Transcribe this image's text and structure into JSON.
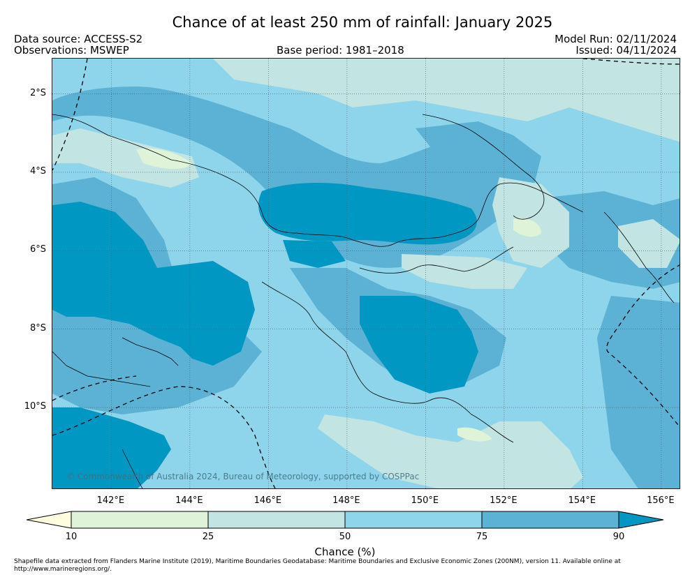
{
  "title": "Chance of at least 250 mm of rainfall: January 2025",
  "header": {
    "data_source": "Data source: ACCESS-S2",
    "observations": "Observations: MSWEP",
    "base_period": "Base period: 1981–2018",
    "model_run": "Model Run: 02/11/2024",
    "issued": "Issued: 04/11/2024"
  },
  "axes": {
    "lon_range": [
      140.5,
      156.5
    ],
    "lat_range": [
      -12.1,
      -1.1
    ],
    "x_ticks": [
      "142°E",
      "144°E",
      "146°E",
      "148°E",
      "150°E",
      "152°E",
      "154°E",
      "156°E"
    ],
    "y_ticks": [
      "2°S",
      "4°S",
      "6°S",
      "8°S",
      "10°S"
    ],
    "x_tick_values": [
      142,
      144,
      146,
      148,
      150,
      152,
      154,
      156
    ],
    "y_tick_values": [
      -2,
      -4,
      -6,
      -8,
      -10
    ],
    "grid": true
  },
  "colors": {
    "c10_25": "#dff3d8",
    "c25_50": "#c2e4e3",
    "c50_75": "#8ed4ea",
    "c75_90": "#5bb2d5",
    "c90_plus": "#0098c2",
    "c_under10": "#fefde0"
  },
  "colorbar": {
    "label": "Chance (%)",
    "ticks": [
      "10",
      "25",
      "50",
      "75",
      "90"
    ]
  },
  "copyright": "© Commonwealth of Australia 2024, Bureau of Meteorology, supported by COSPPac",
  "footnote": "Shapefile data extracted from Flanders Marine Institute (2019), Maritime Boundaries Geodatabase: Maritime Boundaries and Exclusive Economic Zones (200NM), version 11. Available online at http://www.marineregions.org/."
}
